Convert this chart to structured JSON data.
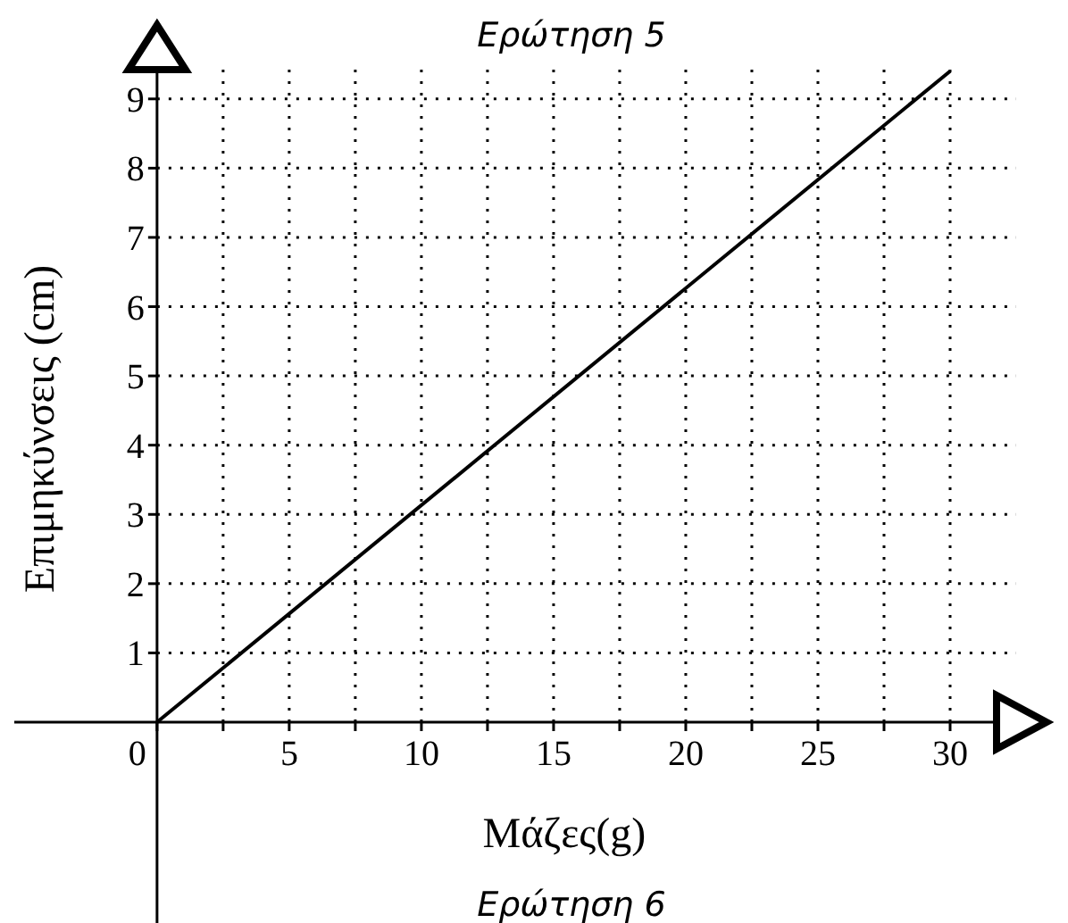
{
  "chart_data": {
    "type": "line",
    "title": "Ερώτηση 5",
    "xlabel": "Μάζες(g)",
    "ylabel": "Επιμηκύνσεις (cm)",
    "annotations": [
      "Ερώτηση 6"
    ],
    "x": [
      0,
      30
    ],
    "series": [
      {
        "color": "#000000",
        "values": [
          0,
          9.4
        ]
      }
    ],
    "xlim": [
      -5.4,
      32.5
    ],
    "ylim": [
      -2.9,
      9.5
    ],
    "xticks": [
      0,
      {
        "value": 2.5,
        "label": null
      },
      5,
      {
        "value": 7.5,
        "label": null
      },
      10,
      {
        "value": 12.5,
        "label": null
      },
      15,
      {
        "value": 17.5,
        "label": null
      },
      20,
      {
        "value": 22.5,
        "label": null
      },
      25,
      {
        "value": 27.5,
        "label": null
      },
      30
    ],
    "yticks": [
      1,
      2,
      3,
      4,
      5,
      6,
      7,
      8,
      9
    ],
    "grid": true,
    "marker": "none",
    "line_style": "solid"
  }
}
